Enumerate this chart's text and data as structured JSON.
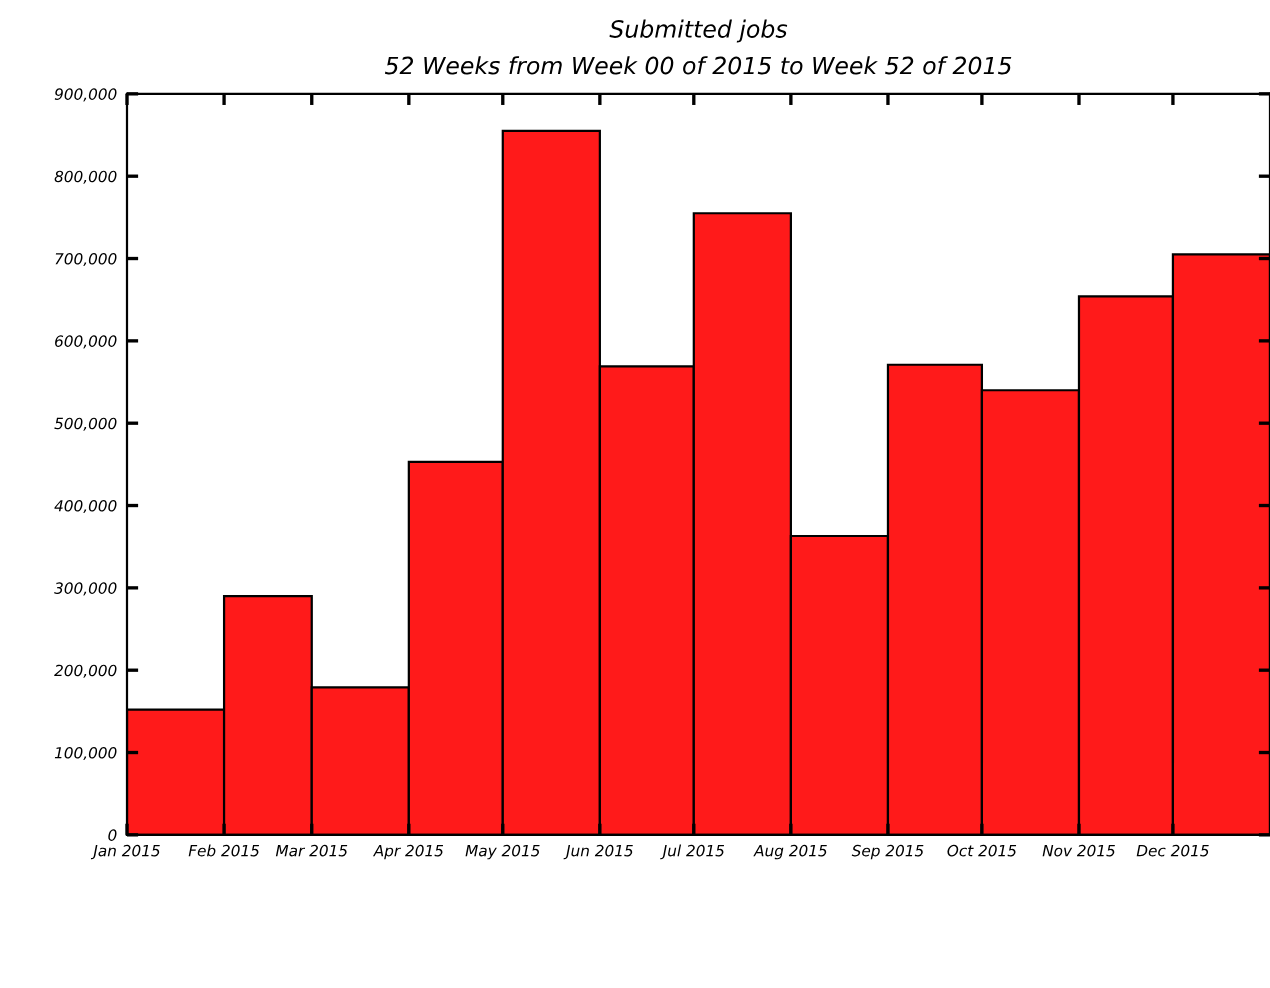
{
  "chart_data": {
    "type": "histogram",
    "title": "Submitted jobs",
    "subtitle": "52 Weeks from Week 00 of 2015 to Week 52 of 2015",
    "bins": [
      "2015-01",
      "2015-02",
      "2015-03",
      "2015-04",
      "2015-05",
      "2015-06",
      "2015-07",
      "2015-08",
      "2015-09",
      "2015-10",
      "2015-11",
      "2015-12",
      "2016-01"
    ],
    "values": [
      152000,
      290000,
      179000,
      453000,
      855000,
      569000,
      755000,
      363000,
      571000,
      540000,
      654000,
      705000
    ],
    "color": "#ff1a1a",
    "xlim": [
      "2015-01",
      "2016-01"
    ],
    "xticks": [
      {
        "value": "2015-01",
        "label": "Jan 2015"
      },
      {
        "value": "2015-02",
        "label": "Feb 2015"
      },
      {
        "value": "2015-03",
        "label": "Mar 2015"
      },
      {
        "value": "2015-04",
        "label": "Apr 2015"
      },
      {
        "value": "2015-05",
        "label": "May 2015"
      },
      {
        "value": "2015-06",
        "label": "Jun 2015"
      },
      {
        "value": "2015-07",
        "label": "Jul 2015"
      },
      {
        "value": "2015-08",
        "label": "Aug 2015"
      },
      {
        "value": "2015-09",
        "label": "Sep 2015"
      },
      {
        "value": "2015-10",
        "label": "Oct 2015"
      },
      {
        "value": "2015-11",
        "label": "Nov 2015"
      },
      {
        "value": "2015-12",
        "label": "Dec 2015"
      }
    ],
    "ylim": [
      0,
      900000
    ],
    "yticks": [
      0,
      {
        "value": 100000,
        "label": "100,000"
      },
      {
        "value": 200000,
        "label": "200,000"
      },
      {
        "value": 300000,
        "label": "300,000"
      },
      {
        "value": 400000,
        "label": "400,000"
      },
      {
        "value": 500000,
        "label": "500,000"
      },
      {
        "value": 600000,
        "label": "600,000"
      },
      {
        "value": 700000,
        "label": "700,000"
      },
      {
        "value": 800000,
        "label": "800,000"
      },
      {
        "value": 900000,
        "label": "900,000"
      }
    ],
    "grid": false
  }
}
